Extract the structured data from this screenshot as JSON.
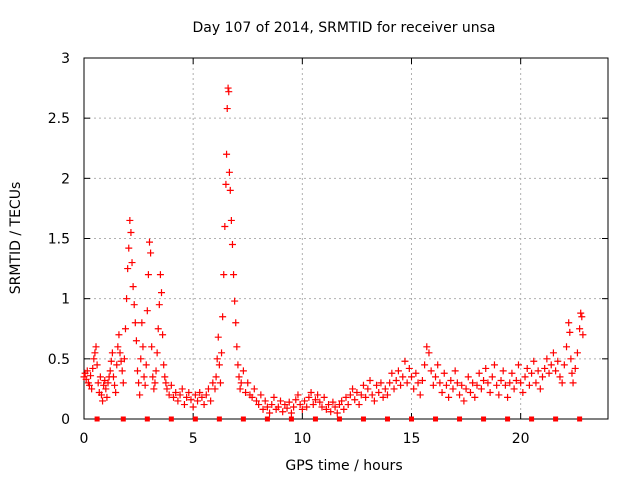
{
  "chart_data": {
    "type": "scatter",
    "title": "Day 107 of 2014, SRMTID for receiver unsa",
    "xlabel": "GPS time / hours",
    "ylabel": "SRMTID / TECUs",
    "xlim": [
      0,
      24
    ],
    "ylim": [
      0,
      3
    ],
    "xticks": [
      0,
      5,
      10,
      15,
      20
    ],
    "xtick_labels": [
      "0",
      "5",
      "10",
      "15",
      "20"
    ],
    "yticks": [
      0,
      0.5,
      1,
      1.5,
      2,
      2.5,
      3
    ],
    "ytick_labels": [
      "0",
      "0.5",
      "1",
      "1.5",
      "2",
      "2.5",
      "3"
    ],
    "grid": true,
    "marker": "+",
    "series_color": "#ff0000",
    "series": [
      {
        "name": "SRMTID",
        "points": [
          [
            0.0,
            0.35
          ],
          [
            0.05,
            0.38
          ],
          [
            0.1,
            0.33
          ],
          [
            0.15,
            0.4
          ],
          [
            0.2,
            0.3
          ],
          [
            0.25,
            0.28
          ],
          [
            0.3,
            0.36
          ],
          [
            0.35,
            0.25
          ],
          [
            0.4,
            0.42
          ],
          [
            0.45,
            0.5
          ],
          [
            0.5,
            0.55
          ],
          [
            0.55,
            0.6
          ],
          [
            0.6,
            0.45
          ],
          [
            0.65,
            0.3
          ],
          [
            0.7,
            0.22
          ],
          [
            0.75,
            0.35
          ],
          [
            0.8,
            0.2
          ],
          [
            0.85,
            0.15
          ],
          [
            0.9,
            0.28
          ],
          [
            0.95,
            0.32
          ],
          [
            1.0,
            0.25
          ],
          [
            1.05,
            0.18
          ],
          [
            1.1,
            0.3
          ],
          [
            1.15,
            0.35
          ],
          [
            1.2,
            0.4
          ],
          [
            1.25,
            0.48
          ],
          [
            1.3,
            0.55
          ],
          [
            1.35,
            0.35
          ],
          [
            1.4,
            0.28
          ],
          [
            1.45,
            0.22
          ],
          [
            1.5,
            0.45
          ],
          [
            1.55,
            0.6
          ],
          [
            1.6,
            0.7
          ],
          [
            1.65,
            0.55
          ],
          [
            1.7,
            0.48
          ],
          [
            1.75,
            0.4
          ],
          [
            1.8,
            0.3
          ],
          [
            1.85,
            0.5
          ],
          [
            1.9,
            0.75
          ],
          [
            1.95,
            1.0
          ],
          [
            2.0,
            1.25
          ],
          [
            2.05,
            1.42
          ],
          [
            2.1,
            1.65
          ],
          [
            2.15,
            1.55
          ],
          [
            2.2,
            1.3
          ],
          [
            2.25,
            1.1
          ],
          [
            2.3,
            0.95
          ],
          [
            2.35,
            0.8
          ],
          [
            2.4,
            0.65
          ],
          [
            2.45,
            0.4
          ],
          [
            2.5,
            0.3
          ],
          [
            2.55,
            0.2
          ],
          [
            2.6,
            0.5
          ],
          [
            2.65,
            0.8
          ],
          [
            2.7,
            0.6
          ],
          [
            2.75,
            0.35
          ],
          [
            2.8,
            0.28
          ],
          [
            2.85,
            0.45
          ],
          [
            2.9,
            0.9
          ],
          [
            2.95,
            1.2
          ],
          [
            3.0,
            1.47
          ],
          [
            3.05,
            1.38
          ],
          [
            3.1,
            0.6
          ],
          [
            3.15,
            0.35
          ],
          [
            3.2,
            0.25
          ],
          [
            3.25,
            0.3
          ],
          [
            3.3,
            0.4
          ],
          [
            3.35,
            0.55
          ],
          [
            3.4,
            0.75
          ],
          [
            3.45,
            0.95
          ],
          [
            3.5,
            1.2
          ],
          [
            3.55,
            1.05
          ],
          [
            3.6,
            0.7
          ],
          [
            3.65,
            0.45
          ],
          [
            3.7,
            0.35
          ],
          [
            3.75,
            0.3
          ],
          [
            3.8,
            0.25
          ],
          [
            3.9,
            0.2
          ],
          [
            4.0,
            0.28
          ],
          [
            4.1,
            0.18
          ],
          [
            4.2,
            0.22
          ],
          [
            4.3,
            0.15
          ],
          [
            4.4,
            0.2
          ],
          [
            4.5,
            0.25
          ],
          [
            4.6,
            0.12
          ],
          [
            4.7,
            0.18
          ],
          [
            4.8,
            0.22
          ],
          [
            4.9,
            0.16
          ],
          [
            5.0,
            0.1
          ],
          [
            5.1,
            0.2
          ],
          [
            5.2,
            0.15
          ],
          [
            5.3,
            0.22
          ],
          [
            5.4,
            0.18
          ],
          [
            5.5,
            0.12
          ],
          [
            5.6,
            0.2
          ],
          [
            5.7,
            0.25
          ],
          [
            5.8,
            0.15
          ],
          [
            5.9,
            0.3
          ],
          [
            6.0,
            0.25
          ],
          [
            6.05,
            0.35
          ],
          [
            6.1,
            0.5
          ],
          [
            6.15,
            0.68
          ],
          [
            6.2,
            0.45
          ],
          [
            6.25,
            0.3
          ],
          [
            6.3,
            0.55
          ],
          [
            6.35,
            0.85
          ],
          [
            6.4,
            1.2
          ],
          [
            6.45,
            1.6
          ],
          [
            6.5,
            1.95
          ],
          [
            6.53,
            2.2
          ],
          [
            6.56,
            2.58
          ],
          [
            6.6,
            2.75
          ],
          [
            6.63,
            2.72
          ],
          [
            6.66,
            2.05
          ],
          [
            6.7,
            1.9
          ],
          [
            6.75,
            1.65
          ],
          [
            6.8,
            1.45
          ],
          [
            6.85,
            1.2
          ],
          [
            6.9,
            0.98
          ],
          [
            6.95,
            0.8
          ],
          [
            7.0,
            0.6
          ],
          [
            7.05,
            0.45
          ],
          [
            7.1,
            0.35
          ],
          [
            7.15,
            0.25
          ],
          [
            7.2,
            0.3
          ],
          [
            7.3,
            0.4
          ],
          [
            7.4,
            0.22
          ],
          [
            7.5,
            0.3
          ],
          [
            7.6,
            0.2
          ],
          [
            7.7,
            0.18
          ],
          [
            7.8,
            0.25
          ],
          [
            7.9,
            0.15
          ],
          [
            8.0,
            0.12
          ],
          [
            8.1,
            0.2
          ],
          [
            8.2,
            0.08
          ],
          [
            8.3,
            0.15
          ],
          [
            8.4,
            0.1
          ],
          [
            8.5,
            0.05
          ],
          [
            8.6,
            0.12
          ],
          [
            8.7,
            0.18
          ],
          [
            8.8,
            0.08
          ],
          [
            8.9,
            0.1
          ],
          [
            9.0,
            0.15
          ],
          [
            9.1,
            0.06
          ],
          [
            9.2,
            0.12
          ],
          [
            9.3,
            0.09
          ],
          [
            9.4,
            0.14
          ],
          [
            9.5,
            0.05
          ],
          [
            9.6,
            0.1
          ],
          [
            9.7,
            0.16
          ],
          [
            9.8,
            0.2
          ],
          [
            9.9,
            0.12
          ],
          [
            10.0,
            0.08
          ],
          [
            10.1,
            0.15
          ],
          [
            10.2,
            0.1
          ],
          [
            10.3,
            0.18
          ],
          [
            10.4,
            0.22
          ],
          [
            10.5,
            0.12
          ],
          [
            10.6,
            0.16
          ],
          [
            10.7,
            0.2
          ],
          [
            10.8,
            0.14
          ],
          [
            10.9,
            0.1
          ],
          [
            11.0,
            0.18
          ],
          [
            11.1,
            0.08
          ],
          [
            11.2,
            0.12
          ],
          [
            11.3,
            0.06
          ],
          [
            11.4,
            0.14
          ],
          [
            11.5,
            0.1
          ],
          [
            11.6,
            0.05
          ],
          [
            11.7,
            0.12
          ],
          [
            11.8,
            0.15
          ],
          [
            11.9,
            0.08
          ],
          [
            12.0,
            0.18
          ],
          [
            12.1,
            0.12
          ],
          [
            12.2,
            0.2
          ],
          [
            12.3,
            0.25
          ],
          [
            12.4,
            0.16
          ],
          [
            12.5,
            0.22
          ],
          [
            12.6,
            0.12
          ],
          [
            12.7,
            0.2
          ],
          [
            12.8,
            0.28
          ],
          [
            12.9,
            0.18
          ],
          [
            13.0,
            0.25
          ],
          [
            13.1,
            0.32
          ],
          [
            13.2,
            0.2
          ],
          [
            13.3,
            0.15
          ],
          [
            13.4,
            0.28
          ],
          [
            13.5,
            0.22
          ],
          [
            13.6,
            0.3
          ],
          [
            13.7,
            0.18
          ],
          [
            13.8,
            0.25
          ],
          [
            13.9,
            0.2
          ],
          [
            14.0,
            0.3
          ],
          [
            14.1,
            0.38
          ],
          [
            14.2,
            0.25
          ],
          [
            14.3,
            0.32
          ],
          [
            14.4,
            0.4
          ],
          [
            14.5,
            0.28
          ],
          [
            14.6,
            0.35
          ],
          [
            14.7,
            0.48
          ],
          [
            14.8,
            0.3
          ],
          [
            14.9,
            0.42
          ],
          [
            15.0,
            0.35
          ],
          [
            15.1,
            0.25
          ],
          [
            15.2,
            0.38
          ],
          [
            15.3,
            0.3
          ],
          [
            15.4,
            0.2
          ],
          [
            15.5,
            0.32
          ],
          [
            15.6,
            0.45
          ],
          [
            15.7,
            0.6
          ],
          [
            15.8,
            0.55
          ],
          [
            15.9,
            0.4
          ],
          [
            16.0,
            0.28
          ],
          [
            16.1,
            0.35
          ],
          [
            16.2,
            0.45
          ],
          [
            16.3,
            0.3
          ],
          [
            16.4,
            0.22
          ],
          [
            16.5,
            0.38
          ],
          [
            16.6,
            0.28
          ],
          [
            16.7,
            0.18
          ],
          [
            16.8,
            0.32
          ],
          [
            16.9,
            0.25
          ],
          [
            17.0,
            0.4
          ],
          [
            17.1,
            0.3
          ],
          [
            17.2,
            0.2
          ],
          [
            17.3,
            0.28
          ],
          [
            17.4,
            0.15
          ],
          [
            17.5,
            0.25
          ],
          [
            17.6,
            0.35
          ],
          [
            17.7,
            0.22
          ],
          [
            17.8,
            0.3
          ],
          [
            17.9,
            0.18
          ],
          [
            18.0,
            0.28
          ],
          [
            18.1,
            0.38
          ],
          [
            18.2,
            0.25
          ],
          [
            18.3,
            0.32
          ],
          [
            18.4,
            0.42
          ],
          [
            18.5,
            0.3
          ],
          [
            18.6,
            0.22
          ],
          [
            18.7,
            0.35
          ],
          [
            18.8,
            0.45
          ],
          [
            18.9,
            0.28
          ],
          [
            19.0,
            0.2
          ],
          [
            19.1,
            0.32
          ],
          [
            19.2,
            0.4
          ],
          [
            19.3,
            0.28
          ],
          [
            19.4,
            0.18
          ],
          [
            19.5,
            0.3
          ],
          [
            19.6,
            0.38
          ],
          [
            19.7,
            0.25
          ],
          [
            19.8,
            0.32
          ],
          [
            19.9,
            0.45
          ],
          [
            20.0,
            0.3
          ],
          [
            20.1,
            0.22
          ],
          [
            20.2,
            0.35
          ],
          [
            20.3,
            0.42
          ],
          [
            20.4,
            0.28
          ],
          [
            20.5,
            0.38
          ],
          [
            20.6,
            0.48
          ],
          [
            20.7,
            0.3
          ],
          [
            20.8,
            0.4
          ],
          [
            20.9,
            0.25
          ],
          [
            21.0,
            0.35
          ],
          [
            21.1,
            0.42
          ],
          [
            21.2,
            0.5
          ],
          [
            21.3,
            0.38
          ],
          [
            21.4,
            0.45
          ],
          [
            21.5,
            0.55
          ],
          [
            21.6,
            0.4
          ],
          [
            21.7,
            0.48
          ],
          [
            21.8,
            0.35
          ],
          [
            21.9,
            0.3
          ],
          [
            22.0,
            0.45
          ],
          [
            22.1,
            0.6
          ],
          [
            22.2,
            0.8
          ],
          [
            22.25,
            0.72
          ],
          [
            22.3,
            0.5
          ],
          [
            22.35,
            0.38
          ],
          [
            22.4,
            0.3
          ],
          [
            22.5,
            0.42
          ],
          [
            22.6,
            0.55
          ],
          [
            22.7,
            0.75
          ],
          [
            22.75,
            0.88
          ],
          [
            22.8,
            0.85
          ],
          [
            22.85,
            0.7
          ]
        ]
      }
    ],
    "markers_on_axis": [
      0.6,
      1.8,
      2.9,
      4.0,
      5.1,
      6.2,
      7.3,
      8.4,
      9.5,
      10.6,
      11.7,
      12.8,
      13.9,
      15.0,
      16.1,
      17.2,
      18.3,
      19.4,
      20.5,
      21.6,
      22.7
    ]
  }
}
